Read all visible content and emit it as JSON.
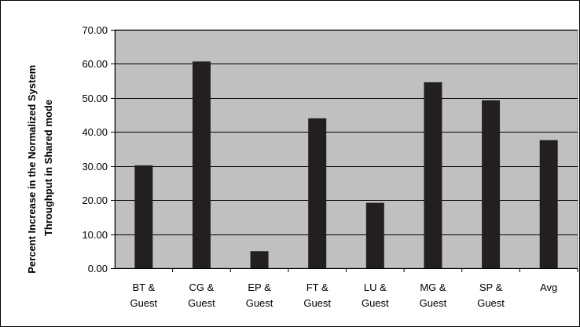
{
  "chart_data": {
    "type": "bar",
    "categories": [
      [
        "BT &",
        "Guest"
      ],
      [
        "CG &",
        "Guest"
      ],
      [
        "EP &",
        "Guest"
      ],
      [
        "FT &",
        "Guest"
      ],
      [
        "LU &",
        "Guest"
      ],
      [
        "MG &",
        "Guest"
      ],
      [
        "SP &",
        "Guest"
      ],
      [
        "Avg"
      ]
    ],
    "values": [
      30.2,
      60.7,
      5.0,
      44.0,
      19.2,
      54.6,
      49.3,
      37.6
    ],
    "ylabel_lines": [
      "Percent Increase in the Normalized System",
      "Throughput in Shared mode"
    ],
    "yticks": [
      "0.00",
      "10.00",
      "20.00",
      "30.00",
      "40.00",
      "50.00",
      "60.00",
      "70.00"
    ],
    "ylim": [
      0,
      70
    ],
    "grid": true,
    "colors": {
      "bar": "#231f20",
      "plot_bg": "#c0c0c0",
      "grid": "#000000"
    }
  }
}
